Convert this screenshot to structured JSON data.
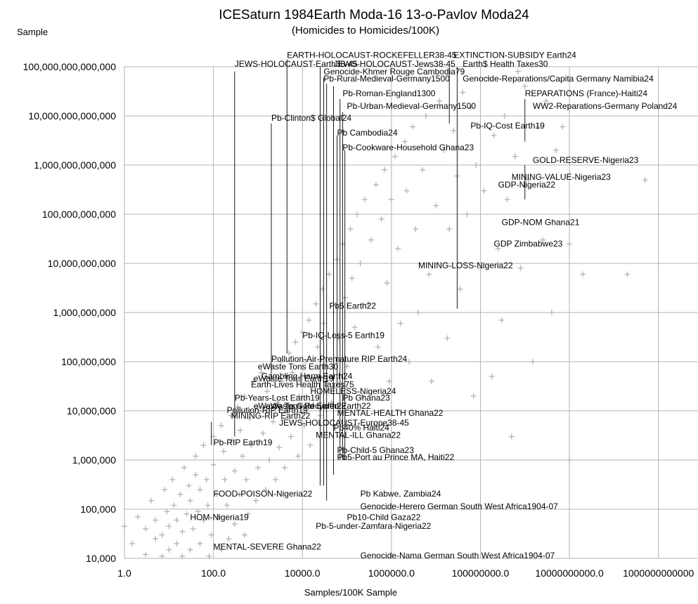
{
  "chart_data": {
    "type": "scatter",
    "title": "ICESaturn 1984Earth Moda-16 13-o-Pavlov Moda24",
    "subtitle": "(Homicides to Homicides/100K)",
    "ylabel": "Sample",
    "xlabel": "Samples/100K Sample",
    "x_scale": "log10",
    "y_scale": "log10",
    "xlim": [
      1,
      10000000000000
    ],
    "ylim": [
      10000,
      100000000000000
    ],
    "x_tick_labels": [
      "1.0",
      "100.0",
      "10000.0",
      "1000000.0",
      "100000000.0",
      "10000000000.0",
      "1000000000000"
    ],
    "y_tick_labels": [
      "10,000",
      "100,000",
      "1,000,000",
      "10,000,000",
      "100,000,000",
      "1,000,000,000",
      "10,000,000,000",
      "100,000,000,000",
      "1,000,000,000,000",
      "10,000,000,000,000",
      "100,000,000,000,000"
    ],
    "grid": true,
    "marker": "+",
    "marker_color": "#b3b3b3",
    "annotations": [
      {
        "text": "EARTH-HOLOCAUST-ROCKEFELLER38-45",
        "x": 4500,
        "y": 150000000000000
      },
      {
        "text": "EXTINCTION-SUBSIDY Earth24",
        "x": 25000000,
        "y": 150000000000000
      },
      {
        "text": "JEWS-HOLOCAUST-Earth38-45",
        "x": 300,
        "y": 100000000000000
      },
      {
        "text": "JEWS-HOLOCAUST-Jews38-45",
        "x": 50000,
        "y": 100000000000000
      },
      {
        "text": "Earth$ Health Taxes30",
        "x": 40000000,
        "y": 100000000000000
      },
      {
        "text": "Genocide-Khmer Rouge Cambodia79",
        "x": 30000,
        "y": 70000000000000
      },
      {
        "text": "Pb-Rural-Medieval-Germany1500",
        "x": 30000,
        "y": 50000000000000
      },
      {
        "text": "Genocide-Reparations/Capita Germany Namibia24",
        "x": 40000000,
        "y": 50000000000000
      },
      {
        "text": "Pb-Roman-England1300",
        "x": 80000,
        "y": 25000000000000
      },
      {
        "text": "REPARATIONS (France)-Haiti24",
        "x": 1000000000,
        "y": 25000000000000
      },
      {
        "text": "Pb-Urban-Medieval-Germany1500",
        "x": 100000,
        "y": 14000000000000
      },
      {
        "text": "WW2-Reparations-Germany Poland24",
        "x": 1500000000,
        "y": 14000000000000
      },
      {
        "text": "Pb-Clinton$ Global24",
        "x": 2000,
        "y": 8000000000000
      },
      {
        "text": "Pb-IQ-Cost Earth19",
        "x": 60000000,
        "y": 5500000000000
      },
      {
        "text": "Pb Cambodia24",
        "x": 60000,
        "y": 4000000000000
      },
      {
        "text": "Pb-Cookware-Household Ghana23",
        "x": 80000,
        "y": 2000000000000
      },
      {
        "text": "GOLD-RESERVE-Nigeria23",
        "x": 1500000000,
        "y": 1100000000000
      },
      {
        "text": "MINING-VALUE-Nigeria23",
        "x": 500000000,
        "y": 500000000000
      },
      {
        "text": "GDP-Nigeria22",
        "x": 250000000,
        "y": 350000000000
      },
      {
        "text": "GDP-NOM Ghana21",
        "x": 300000000,
        "y": 60000000000
      },
      {
        "text": "GDP Zimbabwe23",
        "x": 200000000,
        "y": 22000000000
      },
      {
        "text": "MINING-LOSS-Nigeria22",
        "x": 4000000,
        "y": 8000000000
      },
      {
        "text": "Pb5 Earth22",
        "x": 40000,
        "y": 1200000000
      },
      {
        "text": "Pb-IQ-Loss-5 Earth19",
        "x": 10000,
        "y": 300000000
      },
      {
        "text": "Pollution-Air-Premature RIP Earth24",
        "x": 2000,
        "y": 100000000
      },
      {
        "text": "eWaste Tons Earth30",
        "x": 1000,
        "y": 70000000
      },
      {
        "text": "Gambling Harm Earth24",
        "x": 1200,
        "y": 45000000
      },
      {
        "text": "eWaste Tons Earth19",
        "x": 800,
        "y": 40000000
      },
      {
        "text": "Earth-Lives Health Taxes75",
        "x": 700,
        "y": 30000000
      },
      {
        "text": "HOMELESS-Nigeria24",
        "x": 15000,
        "y": 22000000
      },
      {
        "text": "Pb-Years-Lost Earth19",
        "x": 300,
        "y": 16000000
      },
      {
        "text": "Pb Ghana23",
        "x": 80000,
        "y": 16000000
      },
      {
        "text": "eWaste Tons Recycled Earth22",
        "x": 800,
        "y": 11000000
      },
      {
        "text": "eWaste Gold Earth22",
        "x": 1500,
        "y": 11000000
      },
      {
        "text": "Pollution-RIP Earth19",
        "x": 200,
        "y": 9000000
      },
      {
        "text": "MENTAL-HEALTH Ghana22",
        "x": 60000,
        "y": 8000000
      },
      {
        "text": "MINING-RIP Earth22",
        "x": 250,
        "y": 7000000
      },
      {
        "text": "JEWS-HOLOCAUST-Europe38-45",
        "x": 3000,
        "y": 5000000
      },
      {
        "text": "Pb40% Haiti24",
        "x": 50000,
        "y": 4000000
      },
      {
        "text": "MENTAL-ILL Ghana22",
        "x": 20000,
        "y": 2800000
      },
      {
        "text": "Pb-RIP Earth19",
        "x": 100,
        "y": 2000000
      },
      {
        "text": "Pb-Child-5 Ghana23",
        "x": 60000,
        "y": 1400000
      },
      {
        "text": "Pb5-Port au Prince MA, Haiti22",
        "x": 60000,
        "y": 1000000
      },
      {
        "text": "Pb Kabwe, Zambia24",
        "x": 200000,
        "y": 180000
      },
      {
        "text": "FOOD-POISON-Nigeria22",
        "x": 100,
        "y": 180000
      },
      {
        "text": "Genocide-Herero German South West Africa1904-07",
        "x": 200000,
        "y": 100000
      },
      {
        "text": "HOM-Nigeria19",
        "x": 30,
        "y": 60000
      },
      {
        "text": "Pb10-Child Gaza22",
        "x": 100000,
        "y": 60000
      },
      {
        "text": "Pb-5-under-Zamfara-Nigeria22",
        "x": 20000,
        "y": 40000
      },
      {
        "text": "MENTAL-SEVERE Ghana22",
        "x": 100,
        "y": 15000
      },
      {
        "text": "Genocide-Nama German South West Africa1904-07",
        "x": 200000,
        "y": 10000
      }
    ],
    "leader_lines": [
      {
        "x": 300,
        "y1": 80000000000000,
        "y2": 3000000
      },
      {
        "x": 4500,
        "y1": 140000000000000,
        "y2": 150000000
      },
      {
        "x": 2000,
        "y1": 7000000000000,
        "y2": 40000000
      },
      {
        "x": 25000,
        "y1": 100000000000000,
        "y2": 300000
      },
      {
        "x": 30000,
        "y1": 60000000000000,
        "y2": 300000
      },
      {
        "x": 35000,
        "y1": 45000000000000,
        "y2": 150000
      },
      {
        "x": 50000,
        "y1": 40000000000000,
        "y2": 500000
      },
      {
        "x": 60000,
        "y1": 4000000000000,
        "y2": 30000000
      },
      {
        "x": 70000,
        "y1": 22000000000000,
        "y2": 1000000
      },
      {
        "x": 80000,
        "y1": 12000000000000,
        "y2": 1000000
      },
      {
        "x": 90000,
        "y1": 2000000000000,
        "y2": 1000000
      },
      {
        "x": 30000000,
        "y1": 100000000000000,
        "y2": 1200000000
      },
      {
        "x": 20000000,
        "y1": 100000000000000,
        "y2": 7000000000000
      },
      {
        "x": 1000000000,
        "y1": 22000000000000,
        "y2": 3000000000000
      },
      {
        "x": 1000000000,
        "y1": 1000000000000,
        "y2": 200000000000
      },
      {
        "x": 90,
        "y1": 2000000,
        "y2": 6000000
      }
    ],
    "points": [
      [
        1,
        45000
      ],
      [
        1.5,
        20000
      ],
      [
        2,
        70000
      ],
      [
        3,
        12000
      ],
      [
        3,
        40000
      ],
      [
        4,
        150000
      ],
      [
        5,
        25000
      ],
      [
        5,
        60000
      ],
      [
        7,
        11000
      ],
      [
        7,
        30000
      ],
      [
        8,
        250000
      ],
      [
        9,
        90000
      ],
      [
        10,
        15000
      ],
      [
        10,
        45000
      ],
      [
        12,
        400000
      ],
      [
        13,
        120000
      ],
      [
        15,
        20000
      ],
      [
        15,
        60000
      ],
      [
        18,
        200000
      ],
      [
        20,
        11000
      ],
      [
        20,
        35000
      ],
      [
        22,
        700000
      ],
      [
        25,
        80000
      ],
      [
        28,
        300000
      ],
      [
        30,
        15000
      ],
      [
        30,
        150000
      ],
      [
        35,
        40000
      ],
      [
        40,
        500000
      ],
      [
        40,
        1200000
      ],
      [
        45,
        90000
      ],
      [
        50,
        20000
      ],
      [
        50,
        250000
      ],
      [
        60,
        60000
      ],
      [
        60,
        2000000
      ],
      [
        70,
        400000
      ],
      [
        75,
        120000
      ],
      [
        80,
        11000
      ],
      [
        90,
        30000
      ],
      [
        100,
        800000
      ],
      [
        100,
        3000000
      ],
      [
        120,
        200000
      ],
      [
        130,
        70000
      ],
      [
        150,
        15000
      ],
      [
        150,
        5000000
      ],
      [
        170,
        1500000
      ],
      [
        180,
        400000
      ],
      [
        200,
        120000
      ],
      [
        220,
        25000
      ],
      [
        250,
        8000000
      ],
      [
        260,
        2500000
      ],
      [
        300,
        600000
      ],
      [
        300,
        50000
      ],
      [
        350,
        12000000
      ],
      [
        380,
        200000
      ],
      [
        400,
        4000000
      ],
      [
        450,
        1200000
      ],
      [
        500,
        30000
      ],
      [
        500,
        20000000
      ],
      [
        550,
        400000
      ],
      [
        600,
        80000
      ],
      [
        650,
        7000000
      ],
      [
        700,
        2000000
      ],
      [
        800,
        40000000
      ],
      [
        900,
        150000
      ],
      [
        1000,
        700000
      ],
      [
        1000,
        12000000
      ],
      [
        1200,
        60000000
      ],
      [
        1300,
        3500000
      ],
      [
        1500,
        250000
      ],
      [
        1600,
        25000000
      ],
      [
        1800,
        1000000
      ],
      [
        2000,
        80000000
      ],
      [
        2200,
        6000000
      ],
      [
        2500,
        400000
      ],
      [
        2800,
        15000000
      ],
      [
        3000,
        1800000
      ],
      [
        3300,
        100000000
      ],
      [
        3500,
        40000000
      ],
      [
        4000,
        700000
      ],
      [
        4500,
        10000000
      ],
      [
        5000,
        150000000
      ],
      [
        5500,
        3000000
      ],
      [
        6000,
        60000000
      ],
      [
        7000,
        250000000
      ],
      [
        8000,
        1200000
      ],
      [
        8500,
        20000000
      ],
      [
        10000,
        400000000
      ],
      [
        11000,
        5000000
      ],
      [
        12000,
        100000000
      ],
      [
        14000,
        700000000
      ],
      [
        15000,
        2000000
      ],
      [
        17000,
        30000000
      ],
      [
        20000,
        1500000000
      ],
      [
        22000,
        200000000
      ],
      [
        25000,
        8000000
      ],
      [
        28000,
        3000000000
      ],
      [
        30000,
        600000000
      ],
      [
        35000,
        50000000
      ],
      [
        40000,
        6000000000
      ],
      [
        45000,
        15000000
      ],
      [
        50000,
        1000000000
      ],
      [
        60000,
        12000000000
      ],
      [
        65000,
        300000000
      ],
      [
        70000,
        3000000
      ],
      [
        80000,
        25000000000
      ],
      [
        90000,
        2000000000
      ],
      [
        100000,
        80000000
      ],
      [
        120000,
        50000000000
      ],
      [
        130000,
        5000000000
      ],
      [
        150000,
        500000000
      ],
      [
        170000,
        100000000000
      ],
      [
        200000,
        10000000000
      ],
      [
        220000,
        20000000
      ],
      [
        250000,
        200000000000
      ],
      [
        300000,
        1500000000
      ],
      [
        350000,
        30000000000
      ],
      [
        400000,
        5000000
      ],
      [
        450000,
        400000000000
      ],
      [
        500000,
        200000000
      ],
      [
        600000,
        80000000000
      ],
      [
        700000,
        800000000000
      ],
      [
        800000,
        4000000000
      ],
      [
        900000,
        40000000
      ],
      [
        1000000,
        200000000000
      ],
      [
        1200000,
        1500000000000
      ],
      [
        1400000,
        20000000000
      ],
      [
        1600000,
        600000000
      ],
      [
        2000000,
        3000000000000
      ],
      [
        2200000,
        300000000000
      ],
      [
        2500000,
        100000000
      ],
      [
        3000000,
        6000000000000
      ],
      [
        3500000,
        50000000000
      ],
      [
        4000000,
        1000000000
      ],
      [
        5000000,
        800000000000
      ],
      [
        6000000,
        10000000000000
      ],
      [
        7000000,
        6000000000
      ],
      [
        8000000,
        40000000
      ],
      [
        10000000,
        150000000000
      ],
      [
        12000000,
        20000000000000
      ],
      [
        15000000,
        2000000000000
      ],
      [
        18000000,
        300000000
      ],
      [
        20000000,
        50000000000
      ],
      [
        25000000,
        5000000000000
      ],
      [
        30000000,
        600000000000
      ],
      [
        35000000,
        3000000000
      ],
      [
        40000000,
        30000000000000
      ],
      [
        50000000,
        100000000000
      ],
      [
        60000000,
        15000000000000
      ],
      [
        70000000,
        20000000
      ],
      [
        80000000,
        1000000000000
      ],
      [
        100000000,
        8000000000
      ],
      [
        120000000,
        300000000000
      ],
      [
        150000000,
        60000000000000
      ],
      [
        180000000,
        50000000
      ],
      [
        200000000,
        4000000000000
      ],
      [
        250000000,
        20000000000
      ],
      [
        300000000,
        700000000
      ],
      [
        350000000,
        10000000000000
      ],
      [
        400000000,
        200000000000
      ],
      [
        500000000,
        3000000
      ],
      [
        600000000,
        1500000000000
      ],
      [
        700000000,
        80000000000000
      ],
      [
        800000000,
        8000000000
      ],
      [
        1000000000,
        40000000000000
      ],
      [
        1200000000,
        500000000000
      ],
      [
        1500000000,
        100000000
      ],
      [
        2000000000,
        6000000000000
      ],
      [
        2500000000,
        30000000000
      ],
      [
        3000000000,
        20000000000000
      ],
      [
        4000000000,
        1000000000
      ],
      [
        5000000000,
        2000000000000
      ],
      [
        7000000000,
        6000000000000
      ],
      [
        10000000000,
        1000000
      ],
      [
        10000000000,
        25000000000
      ],
      [
        20000000000,
        6000000000
      ],
      [
        500000000000,
        500000000000
      ],
      [
        200000000000,
        6000000000
      ]
    ]
  }
}
